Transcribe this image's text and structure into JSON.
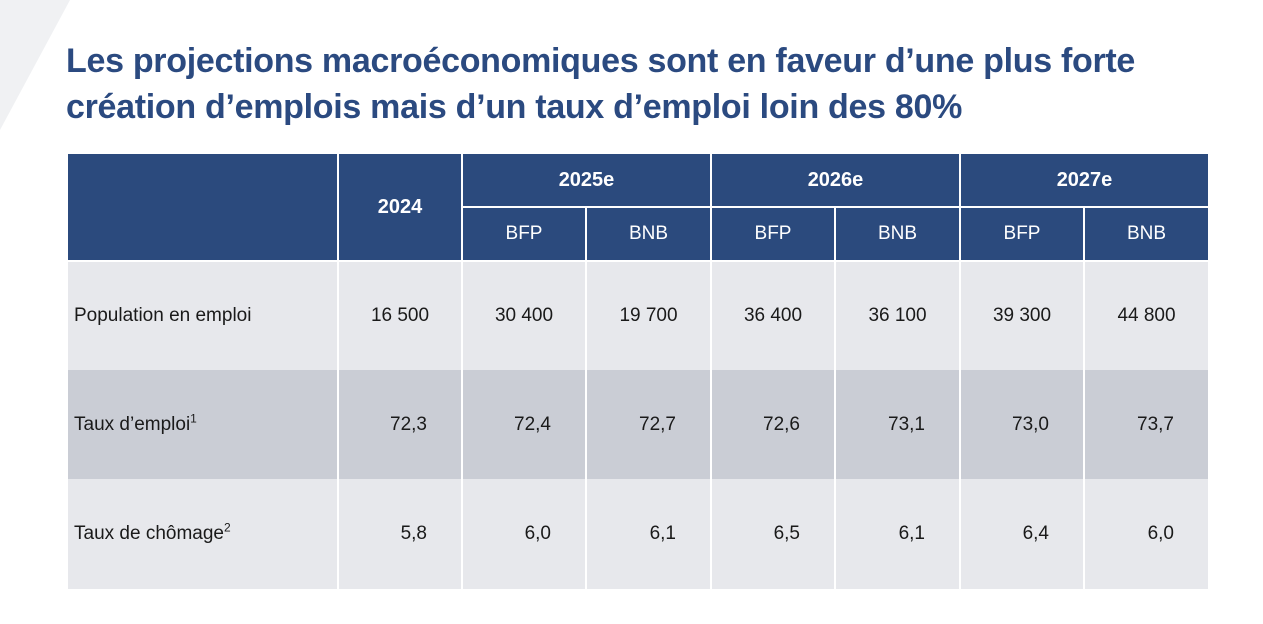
{
  "slide": {
    "title": "Les projections macroéconomiques sont en faveur d’une plus forte création d’emplois mais d’un taux d’emploi loin des 80%"
  },
  "table": {
    "year_2024": "2024",
    "groups": [
      {
        "year": "2025e",
        "sub1": "BFP",
        "sub2": "BNB"
      },
      {
        "year": "2026e",
        "sub1": "BFP",
        "sub2": "BNB"
      },
      {
        "year": "2027e",
        "sub1": "BFP",
        "sub2": "BNB"
      }
    ],
    "rows": [
      {
        "label": "Population en emploi",
        "sup": "",
        "values": [
          "16 500",
          "30 400",
          "19 700",
          "36 400",
          "36 100",
          "39 300",
          "44 800"
        ]
      },
      {
        "label": "Taux d’emploi",
        "sup": "1",
        "values": [
          "72,3",
          "72,4",
          "72,7",
          "72,6",
          "73,1",
          "73,0",
          "73,7"
        ]
      },
      {
        "label": "Taux de chômage",
        "sup": "2",
        "values": [
          "5,8",
          "6,0",
          "6,1",
          "6,5",
          "6,1",
          "6,4",
          "6,0"
        ]
      }
    ]
  },
  "colors": {
    "title": "#2b4a80",
    "header_bg": "#2b4a7d",
    "row_light": "#e7e8ec",
    "row_dark": "#cacdd5"
  }
}
